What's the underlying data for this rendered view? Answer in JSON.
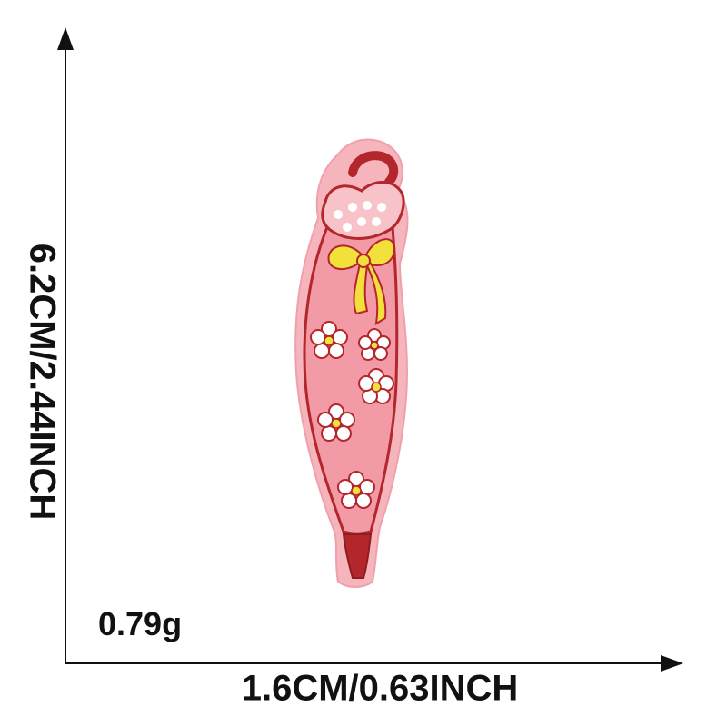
{
  "product": {
    "name_icon": "umbrella-embroidered-patch",
    "colors": {
      "patch_border": "#f2b3ba",
      "patch_fill": "#f4a7b0",
      "stitch_red": "#b3262b",
      "bow_yellow": "#f2e13a",
      "flower_white": "#ffffff"
    }
  },
  "dimensions": {
    "height_text": "6.2CM/2.44INCH",
    "width_text": "1.6CM/0.63INCH",
    "weight_text": "0.79g"
  },
  "axes": {
    "color": "#111111"
  }
}
